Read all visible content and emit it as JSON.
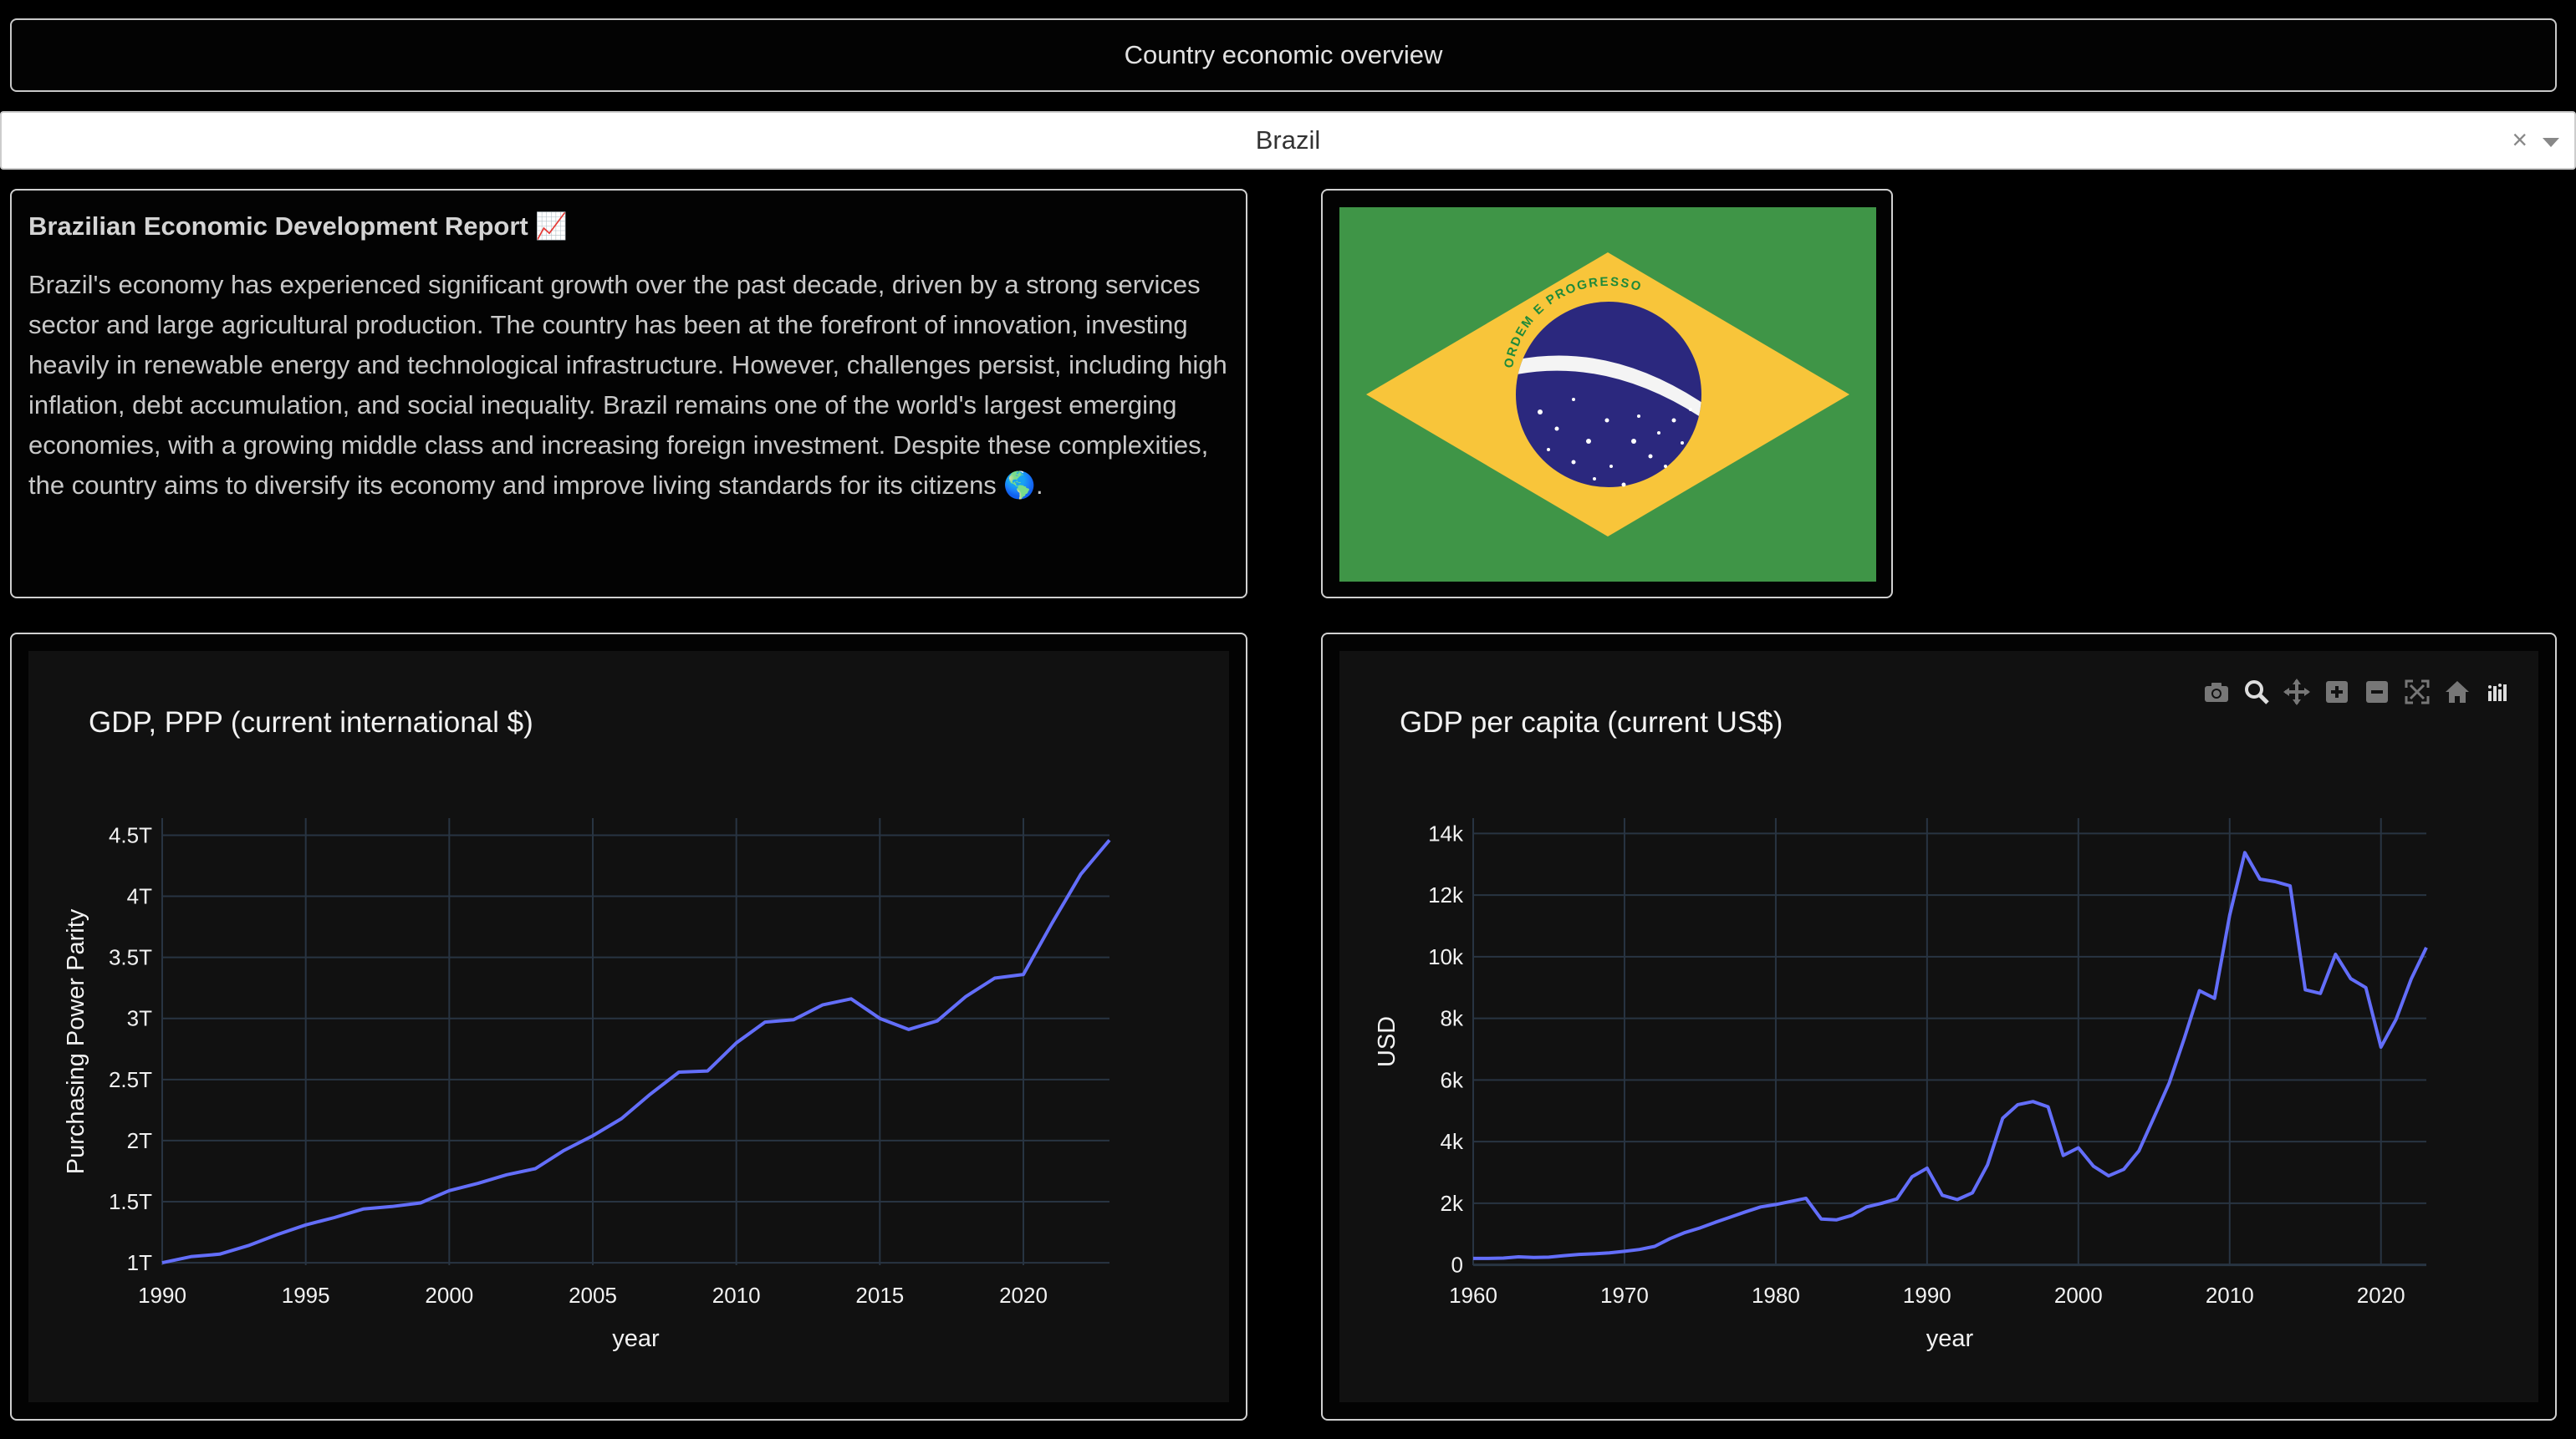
{
  "header": {
    "title": "Country economic overview"
  },
  "country_select": {
    "value": "Brazil",
    "clear_label": "×"
  },
  "report": {
    "title": "Brazilian Economic Development Report 📈",
    "body": "Brazil's economy has experienced significant growth over the past decade, driven by a strong services sector and large agricultural production. The country has been at the forefront of innovation, investing heavily in renewable energy and technological infrastructure. However, challenges persist, including high inflation, debt accumulation, and social inequality. Brazil remains one of the world's largest emerging economies, with a growing middle class and increasing foreign investment. Despite these complexities, the country aims to diversify its economy and improve living standards for its citizens 🌎."
  },
  "flag": {
    "motto": "ORDEM E PROGRESSO",
    "colors": {
      "green": "#3f9547",
      "yellow": "#f8c53a",
      "blue": "#2b287e"
    }
  },
  "modebar": {
    "icons": [
      "camera-icon",
      "zoom-icon",
      "pan-icon",
      "zoom-in-icon",
      "zoom-out-icon",
      "autoscale-icon",
      "reset-axes-icon",
      "plotly-logo-icon"
    ]
  },
  "theme": {
    "line_color": "#636efa",
    "grid_color": "#283442",
    "plot_bg": "#111111"
  },
  "chart_data": [
    {
      "type": "line",
      "title": "GDP, PPP (current international $)",
      "xlabel": "year",
      "ylabel": "Purchasing Power Parity",
      "x_ticks": [
        "1990",
        "1995",
        "2000",
        "2005",
        "2010",
        "2015",
        "2020"
      ],
      "x_tick_values": [
        1990,
        1995,
        2000,
        2005,
        2010,
        2015,
        2020
      ],
      "y_ticks": [
        "1T",
        "1.5T",
        "2T",
        "2.5T",
        "3T",
        "3.5T",
        "4T",
        "4.5T"
      ],
      "y_tick_values": [
        1,
        1.5,
        2,
        2.5,
        3,
        3.5,
        4,
        4.5
      ],
      "xlim": [
        1990,
        2023
      ],
      "ylim": [
        0.98,
        4.64
      ],
      "x": [
        1990,
        1991,
        1992,
        1993,
        1994,
        1995,
        1996,
        1997,
        1998,
        1999,
        2000,
        2001,
        2002,
        2003,
        2004,
        2005,
        2006,
        2007,
        2008,
        2009,
        2010,
        2011,
        2012,
        2013,
        2014,
        2015,
        2016,
        2017,
        2018,
        2019,
        2020,
        2021,
        2022,
        2023
      ],
      "y": [
        1.0,
        1.05,
        1.07,
        1.14,
        1.23,
        1.31,
        1.37,
        1.44,
        1.46,
        1.49,
        1.59,
        1.65,
        1.72,
        1.77,
        1.92,
        2.04,
        2.18,
        2.38,
        2.56,
        2.57,
        2.8,
        2.97,
        2.99,
        3.11,
        3.16,
        3.0,
        2.91,
        2.98,
        3.18,
        3.33,
        3.36,
        3.78,
        4.18,
        4.46
      ],
      "grid": true
    },
    {
      "type": "line",
      "title": "GDP per capita (current US$)",
      "xlabel": "year",
      "ylabel": "USD",
      "x_ticks": [
        "1960",
        "1970",
        "1980",
        "1990",
        "2000",
        "2010",
        "2020"
      ],
      "x_tick_values": [
        1960,
        1970,
        1980,
        1990,
        2000,
        2010,
        2020
      ],
      "y_ticks": [
        "0",
        "2k",
        "4k",
        "6k",
        "8k",
        "10k",
        "12k",
        "14k"
      ],
      "y_tick_values": [
        0,
        2000,
        4000,
        6000,
        8000,
        10000,
        12000,
        14000
      ],
      "xlim": [
        1960,
        2023
      ],
      "ylim": [
        -10,
        14500
      ],
      "x": [
        1960,
        1961,
        1962,
        1963,
        1964,
        1965,
        1966,
        1967,
        1968,
        1969,
        1970,
        1971,
        1972,
        1973,
        1974,
        1975,
        1976,
        1977,
        1978,
        1979,
        1980,
        1981,
        1982,
        1983,
        1984,
        1985,
        1986,
        1987,
        1988,
        1989,
        1990,
        1991,
        1992,
        1993,
        1994,
        1995,
        1996,
        1997,
        1998,
        1999,
        2000,
        2001,
        2002,
        2003,
        2004,
        2005,
        2006,
        2007,
        2008,
        2009,
        2010,
        2011,
        2012,
        2013,
        2014,
        2015,
        2016,
        2017,
        2018,
        2019,
        2020,
        2021,
        2022,
        2023
      ],
      "y": [
        210,
        210,
        220,
        260,
        240,
        250,
        300,
        340,
        360,
        390,
        440,
        500,
        600,
        850,
        1050,
        1200,
        1380,
        1550,
        1720,
        1880,
        1960,
        2060,
        2160,
        1490,
        1460,
        1600,
        1880,
        2000,
        2140,
        2860,
        3140,
        2260,
        2120,
        2340,
        3250,
        4760,
        5200,
        5300,
        5130,
        3550,
        3800,
        3200,
        2890,
        3100,
        3700,
        4790,
        5900,
        7350,
        8900,
        8650,
        11350,
        13380,
        12520,
        12440,
        12300,
        8930,
        8810,
        10080,
        9290,
        9000,
        7070,
        7970,
        9280,
        10300
      ],
      "grid": true
    }
  ]
}
